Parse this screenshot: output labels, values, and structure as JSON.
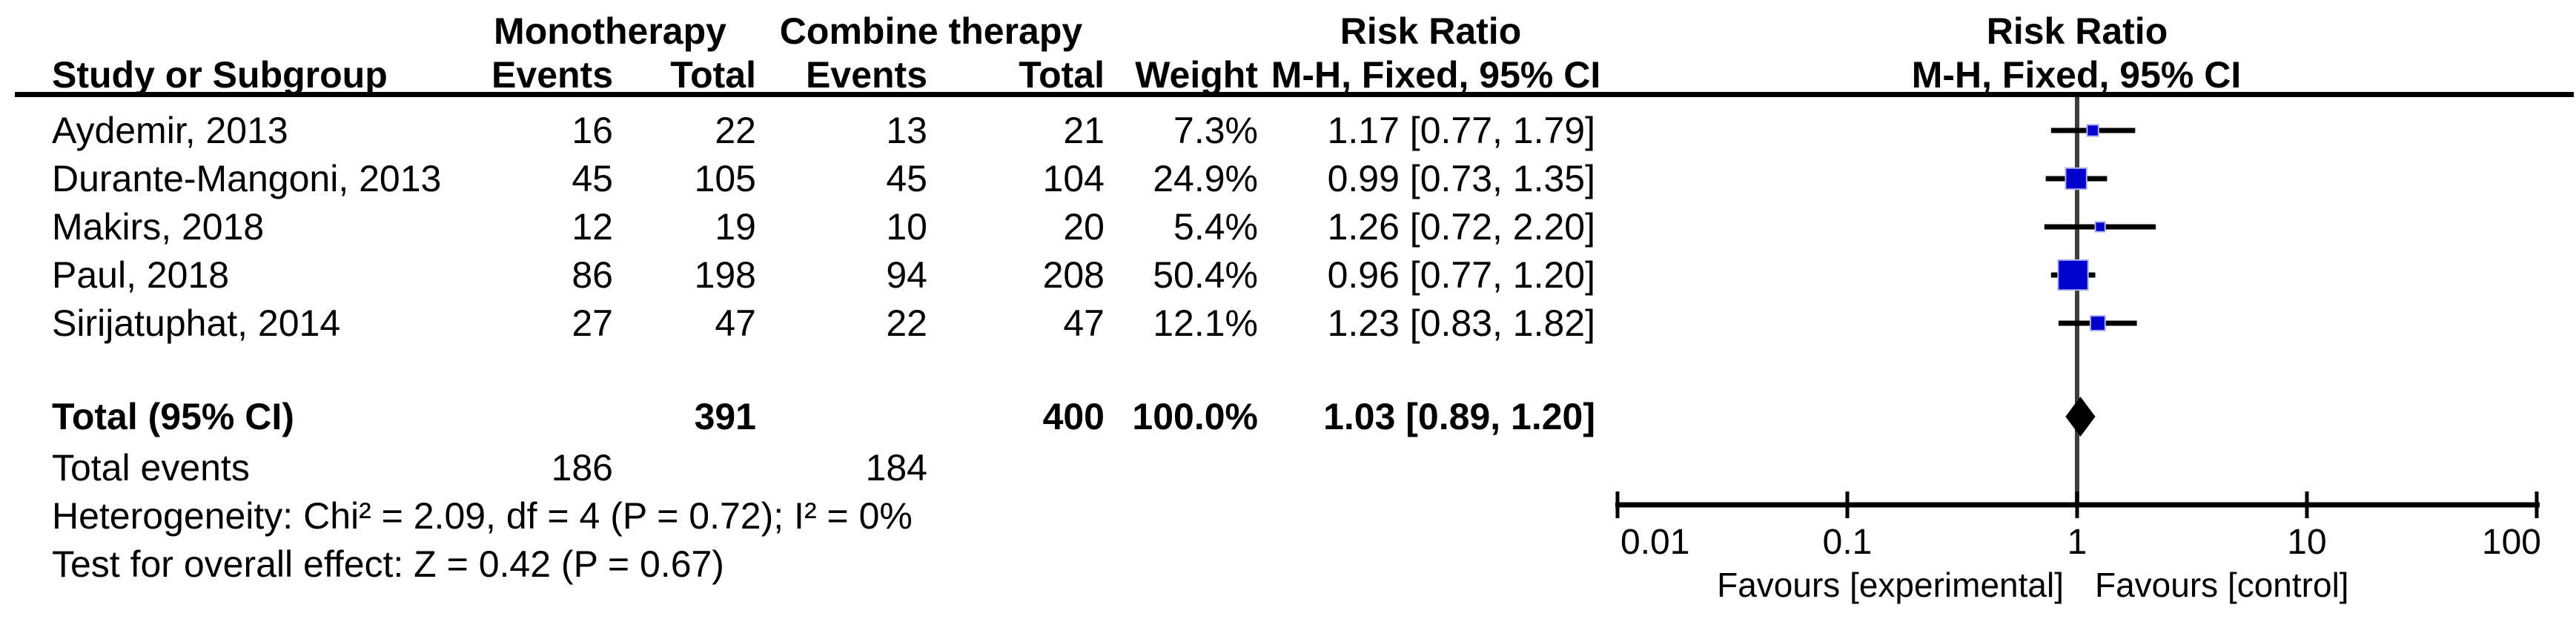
{
  "table": {
    "group_mono": "Monotherapy",
    "group_comb": "Combine therapy",
    "group_rr": "Risk Ratio",
    "h_study": "Study or Subgroup",
    "h_events": "Events",
    "h_total": "Total",
    "h_weight": "Weight",
    "h_ci": "M-H, Fixed, 95% CI",
    "rows": [
      {
        "study": "Aydemir, 2013",
        "me": "16",
        "mt": "22",
        "ce": "13",
        "ct": "21",
        "w": "7.3%",
        "ci": "1.17 [0.77, 1.79]"
      },
      {
        "study": "Durante-Mangoni, 2013",
        "me": "45",
        "mt": "105",
        "ce": "45",
        "ct": "104",
        "w": "24.9%",
        "ci": "0.99 [0.73, 1.35]"
      },
      {
        "study": "Makirs, 2018",
        "me": "12",
        "mt": "19",
        "ce": "10",
        "ct": "20",
        "w": "5.4%",
        "ci": "1.26 [0.72, 2.20]"
      },
      {
        "study": "Paul, 2018",
        "me": "86",
        "mt": "198",
        "ce": "94",
        "ct": "208",
        "w": "50.4%",
        "ci": "0.96 [0.77, 1.20]"
      },
      {
        "study": "Sirijatuphat, 2014",
        "me": "27",
        "mt": "47",
        "ce": "22",
        "ct": "47",
        "w": "12.1%",
        "ci": "1.23 [0.83, 1.82]"
      }
    ],
    "total": {
      "label": "Total (95% CI)",
      "mt": "391",
      "ct": "400",
      "w": "100.0%",
      "ci": "1.03 [0.89, 1.20]"
    },
    "totev": {
      "label": "Total events",
      "me": "186",
      "ce": "184"
    },
    "het": "Heterogeneity: Chi² = 2.09, df = 4 (P = 0.72); I² = 0%",
    "test": "Test for overall effect: Z = 0.42 (P = 0.67)"
  },
  "plot": {
    "title": "Risk Ratio",
    "subtitle": "M-H, Fixed, 95% CI",
    "favours_left": "Favours [experimental]",
    "favours_right": "Favours [control]",
    "marker_color": "#0000CC",
    "line_color": "#000000",
    "no_effect_line_color": "#3d3d3d"
  },
  "chart_data": {
    "type": "forest",
    "effect_measure": "Risk Ratio",
    "method": "M-H, Fixed, 95% CI",
    "group_labels": [
      "Monotherapy",
      "Combine therapy"
    ],
    "x_axis": {
      "scale": "log",
      "ticks": [
        "0.01",
        "0.1",
        "1",
        "10",
        "100"
      ],
      "range": [
        0.01,
        100
      ]
    },
    "studies": [
      {
        "name": "Aydemir, 2013",
        "events_exp": 16,
        "total_exp": 22,
        "events_ctrl": 13,
        "total_ctrl": 21,
        "weight_pct": 7.3,
        "rr": 1.17,
        "ci_low": 0.77,
        "ci_high": 1.79
      },
      {
        "name": "Durante-Mangoni, 2013",
        "events_exp": 45,
        "total_exp": 105,
        "events_ctrl": 45,
        "total_ctrl": 104,
        "weight_pct": 24.9,
        "rr": 0.99,
        "ci_low": 0.73,
        "ci_high": 1.35
      },
      {
        "name": "Makirs, 2018",
        "events_exp": 12,
        "total_exp": 19,
        "events_ctrl": 10,
        "total_ctrl": 20,
        "weight_pct": 5.4,
        "rr": 1.26,
        "ci_low": 0.72,
        "ci_high": 2.2
      },
      {
        "name": "Paul, 2018",
        "events_exp": 86,
        "total_exp": 198,
        "events_ctrl": 94,
        "total_ctrl": 208,
        "weight_pct": 50.4,
        "rr": 0.96,
        "ci_low": 0.77,
        "ci_high": 1.2
      },
      {
        "name": "Sirijatuphat, 2014",
        "events_exp": 27,
        "total_exp": 47,
        "events_ctrl": 22,
        "total_ctrl": 47,
        "weight_pct": 12.1,
        "rr": 1.23,
        "ci_low": 0.83,
        "ci_high": 1.82
      }
    ],
    "summary": {
      "label": "Total (95% CI)",
      "total_exp": 391,
      "total_ctrl": 400,
      "weight_pct": 100.0,
      "rr": 1.03,
      "ci_low": 0.89,
      "ci_high": 1.2,
      "total_events_exp": 186,
      "total_events_ctrl": 184
    },
    "heterogeneity": "Chi² = 2.09, df = 4 (P = 0.72); I² = 0%",
    "overall_effect": "Z = 0.42 (P = 0.67)",
    "legend_left": "Favours [experimental]",
    "legend_right": "Favours [control]"
  }
}
